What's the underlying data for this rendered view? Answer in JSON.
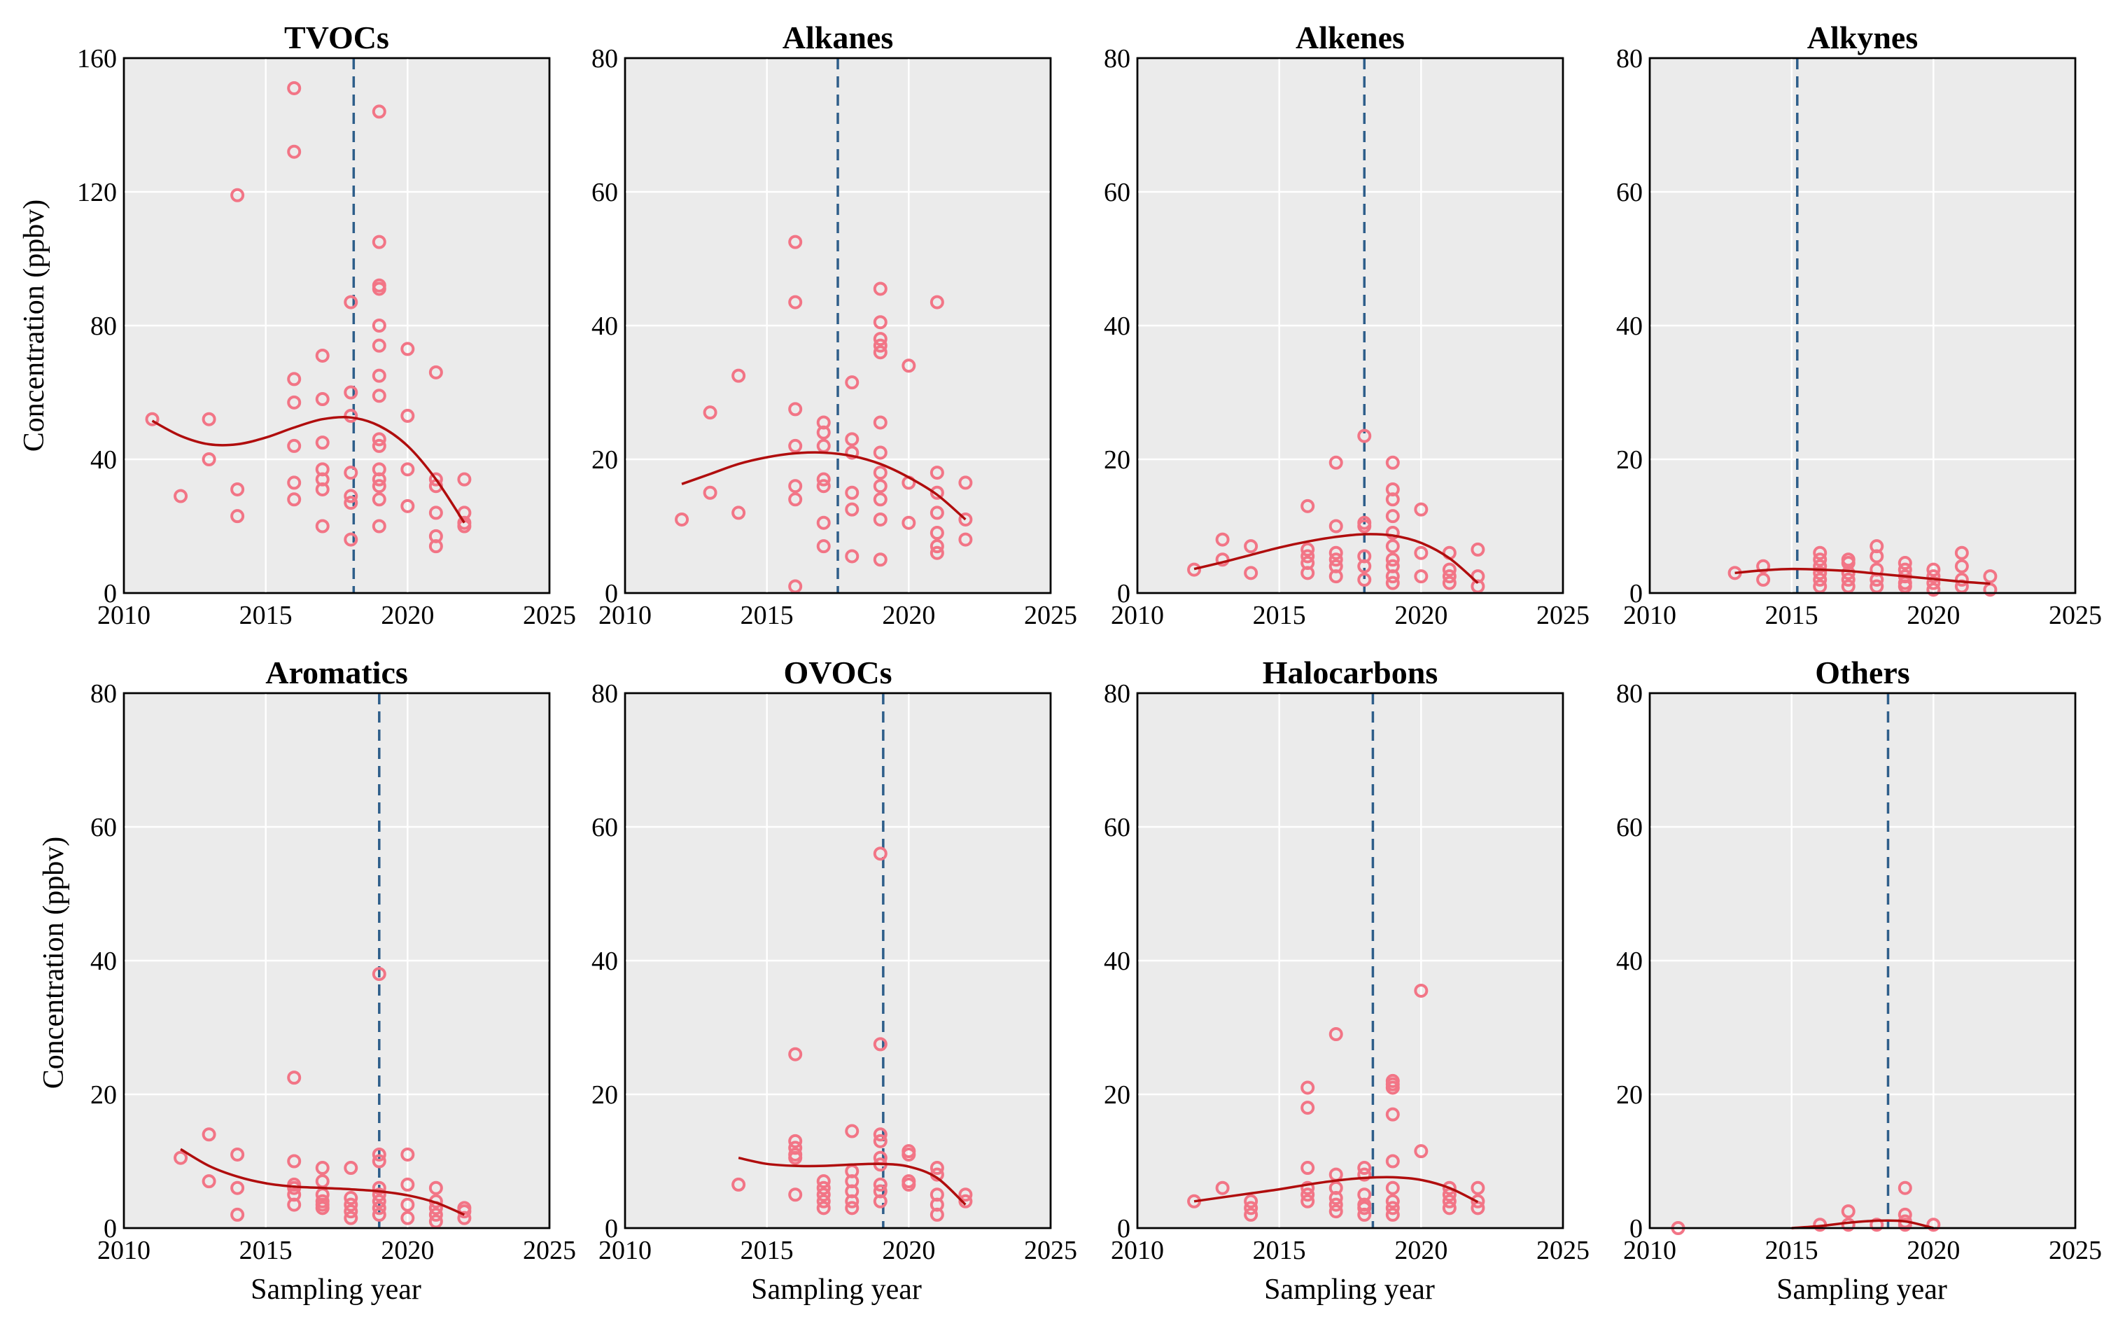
{
  "figure": {
    "ylabel": "Concentration (ppbv)",
    "xlabel": "Sampling year",
    "colors": {
      "points": "#f27586",
      "fit": "#b00d0d",
      "vline": "#2e5e8a",
      "panel_bg": "#ebebeb"
    }
  },
  "chart_data": [
    {
      "type": "scatter",
      "title": "TVOCs",
      "xlim": [
        2010,
        2025
      ],
      "ylim": [
        0,
        160
      ],
      "xticks": [
        "2010",
        "2015",
        "2020",
        "2025"
      ],
      "yticks": [
        "0",
        "40",
        "80",
        "120",
        "160"
      ],
      "grid": true,
      "vline_x": 2018.1,
      "x": [
        2011,
        2012,
        2013,
        2013,
        2014,
        2014,
        2014,
        2016,
        2016,
        2016,
        2016,
        2016,
        2016,
        2016,
        2017,
        2017,
        2017,
        2017,
        2017,
        2017,
        2017,
        2018,
        2018,
        2018,
        2018,
        2018,
        2018,
        2018,
        2019,
        2019,
        2019,
        2019,
        2019,
        2019,
        2019,
        2019,
        2019,
        2019,
        2019,
        2019,
        2019,
        2019,
        2019,
        2020,
        2020,
        2020,
        2020,
        2021,
        2021,
        2021,
        2021,
        2021,
        2021,
        2022,
        2022,
        2022,
        2022
      ],
      "y": [
        52,
        29,
        52,
        40,
        119,
        31,
        23,
        151,
        132,
        64,
        57,
        44,
        33,
        28,
        71,
        58,
        45,
        37,
        34,
        31,
        20,
        87,
        60,
        53,
        36,
        29,
        27,
        16,
        144,
        105,
        92,
        91,
        80,
        74,
        65,
        59,
        46,
        44,
        37,
        34,
        32,
        28,
        20,
        73,
        53,
        37,
        26,
        66,
        34,
        32,
        24,
        17,
        14,
        34,
        24,
        21,
        20
      ],
      "fit": {
        "x": [
          2011,
          2012,
          2013,
          2014,
          2015,
          2016,
          2017,
          2018,
          2019,
          2020,
          2021,
          2022
        ],
        "y": [
          51.5,
          47,
          44.5,
          44.5,
          46.5,
          49.5,
          52,
          52.5,
          50,
          44,
          34,
          21
        ]
      }
    },
    {
      "type": "scatter",
      "title": "Alkanes",
      "xlim": [
        2010,
        2025
      ],
      "ylim": [
        0,
        80
      ],
      "xticks": [
        "2010",
        "2015",
        "2020",
        "2025"
      ],
      "yticks": [
        "0",
        "20",
        "40",
        "60",
        "80"
      ],
      "grid": true,
      "vline_x": 2017.5,
      "x": [
        2012,
        2013,
        2013,
        2014,
        2014,
        2016,
        2016,
        2016,
        2016,
        2016,
        2016,
        2016,
        2017,
        2017,
        2017,
        2017,
        2017,
        2017,
        2017,
        2018,
        2018,
        2018,
        2018,
        2018,
        2018,
        2019,
        2019,
        2019,
        2019,
        2019,
        2019,
        2019,
        2019,
        2019,
        2019,
        2019,
        2019,
        2020,
        2020,
        2020,
        2021,
        2021,
        2021,
        2021,
        2021,
        2021,
        2021,
        2022,
        2022,
        2022
      ],
      "y": [
        11,
        27,
        15,
        32.5,
        12,
        52.5,
        43.5,
        27.5,
        22,
        16,
        14,
        1,
        25.5,
        24,
        22,
        17,
        16,
        10.5,
        7,
        31.5,
        23,
        21,
        15,
        12.5,
        5.5,
        45.5,
        40.5,
        38,
        37,
        36,
        25.5,
        21,
        18,
        16,
        14,
        11,
        5,
        34,
        16.5,
        10.5,
        43.5,
        18,
        15,
        12,
        9,
        7,
        6,
        16.5,
        11,
        8
      ],
      "fit": {
        "x": [
          2012,
          2013,
          2014,
          2015,
          2016,
          2017,
          2018,
          2019,
          2020,
          2021,
          2022
        ],
        "y": [
          16.3,
          17.8,
          19.3,
          20.3,
          20.9,
          21,
          20.5,
          19.3,
          17.3,
          14.7,
          11
        ]
      }
    },
    {
      "type": "scatter",
      "title": "Alkenes",
      "xlim": [
        2010,
        2025
      ],
      "ylim": [
        0,
        80
      ],
      "xticks": [
        "2010",
        "2015",
        "2020",
        "2025"
      ],
      "yticks": [
        "0",
        "20",
        "40",
        "60",
        "80"
      ],
      "grid": true,
      "vline_x": 2018,
      "x": [
        2012,
        2013,
        2013,
        2014,
        2014,
        2016,
        2016,
        2016,
        2016,
        2016,
        2017,
        2017,
        2017,
        2017,
        2017,
        2017,
        2018,
        2018,
        2018,
        2018,
        2018,
        2018,
        2019,
        2019,
        2019,
        2019,
        2019,
        2019,
        2019,
        2019,
        2019,
        2019,
        2020,
        2020,
        2020,
        2021,
        2021,
        2021,
        2021,
        2022,
        2022,
        2022
      ],
      "y": [
        3.5,
        8,
        5,
        7,
        3,
        13,
        6.5,
        5.5,
        4.5,
        3,
        19.5,
        10,
        6,
        5,
        4,
        2.5,
        23.5,
        10.5,
        10,
        5.5,
        4,
        2,
        19.5,
        15.5,
        14,
        11.5,
        9,
        7,
        5,
        4,
        2.5,
        1.5,
        12.5,
        6,
        2.5,
        6,
        3.5,
        2.5,
        1.5,
        6.5,
        2.5,
        1
      ],
      "fit": {
        "x": [
          2012,
          2013,
          2014,
          2015,
          2016,
          2017,
          2018,
          2019,
          2020,
          2021,
          2022
        ],
        "y": [
          3.6,
          4.6,
          5.7,
          6.8,
          7.7,
          8.4,
          8.8,
          8.6,
          7.5,
          5.2,
          1.5
        ]
      }
    },
    {
      "type": "scatter",
      "title": "Alkynes",
      "xlim": [
        2010,
        2025
      ],
      "ylim": [
        0,
        80
      ],
      "xticks": [
        "2010",
        "2015",
        "2020",
        "2025"
      ],
      "yticks": [
        "0",
        "20",
        "40",
        "60",
        "80"
      ],
      "grid": true,
      "vline_x": 2015.2,
      "x": [
        2013,
        2014,
        2014,
        2016,
        2016,
        2016,
        2016,
        2016,
        2016,
        2017,
        2017,
        2017,
        2017,
        2017,
        2018,
        2018,
        2018,
        2018,
        2018,
        2019,
        2019,
        2019,
        2019,
        2019,
        2020,
        2020,
        2020,
        2020,
        2021,
        2021,
        2021,
        2021,
        2022,
        2022
      ],
      "y": [
        3,
        4,
        2,
        6,
        5,
        4,
        3,
        2,
        1,
        5,
        4.5,
        3,
        2,
        1,
        7,
        5.5,
        3.5,
        2,
        1,
        4.5,
        3.5,
        2.5,
        1.5,
        1,
        3.5,
        2.5,
        1.5,
        0.5,
        6,
        4,
        2,
        1,
        2.5,
        0.5
      ],
      "fit": {
        "x": [
          2013,
          2014,
          2015,
          2016,
          2017,
          2018,
          2019,
          2020,
          2021,
          2022
        ],
        "y": [
          3,
          3.4,
          3.6,
          3.5,
          3.3,
          2.9,
          2.5,
          2.1,
          1.7,
          1.4
        ]
      }
    },
    {
      "type": "scatter",
      "title": "Aromatics",
      "xlim": [
        2010,
        2025
      ],
      "ylim": [
        0,
        80
      ],
      "xticks": [
        "2010",
        "2015",
        "2020",
        "2025"
      ],
      "yticks": [
        "0",
        "20",
        "40",
        "60",
        "80"
      ],
      "grid": true,
      "vline_x": 2019,
      "x": [
        2012,
        2013,
        2013,
        2014,
        2014,
        2014,
        2016,
        2016,
        2016,
        2016,
        2016,
        2016,
        2017,
        2017,
        2017,
        2017,
        2017,
        2017,
        2018,
        2018,
        2018,
        2018,
        2018,
        2019,
        2019,
        2019,
        2019,
        2019,
        2019,
        2019,
        2019,
        2020,
        2020,
        2020,
        2020,
        2021,
        2021,
        2021,
        2021,
        2021,
        2022,
        2022,
        2022
      ],
      "y": [
        10.5,
        14,
        7,
        11,
        6,
        2,
        22.5,
        10,
        6.5,
        6,
        5,
        3.5,
        9,
        7,
        5,
        4,
        3.5,
        3,
        9,
        4.5,
        3.5,
        2.5,
        1.5,
        38,
        11,
        10,
        6,
        5,
        4,
        3,
        2,
        11,
        6.5,
        3.5,
        1.5,
        6,
        4,
        3,
        2,
        1,
        3,
        2.5,
        1.5
      ],
      "fit": {
        "x": [
          2012,
          2013,
          2014,
          2015,
          2016,
          2017,
          2018,
          2019,
          2020,
          2021,
          2022
        ],
        "y": [
          11.8,
          9.3,
          7.7,
          6.7,
          6.2,
          6,
          5.8,
          5.5,
          4.9,
          3.8,
          2
        ]
      }
    },
    {
      "type": "scatter",
      "title": "OVOCs",
      "xlim": [
        2010,
        2025
      ],
      "ylim": [
        0,
        80
      ],
      "xticks": [
        "2010",
        "2015",
        "2020",
        "2025"
      ],
      "yticks": [
        "0",
        "20",
        "40",
        "60",
        "80"
      ],
      "grid": true,
      "vline_x": 2019.1,
      "x": [
        2014,
        2016,
        2016,
        2016,
        2016,
        2016,
        2016,
        2017,
        2017,
        2017,
        2017,
        2017,
        2018,
        2018,
        2018,
        2018,
        2018,
        2018,
        2019,
        2019,
        2019,
        2019,
        2019,
        2019,
        2019,
        2019,
        2019,
        2020,
        2020,
        2020,
        2020,
        2021,
        2021,
        2021,
        2021,
        2021,
        2022,
        2022
      ],
      "y": [
        6.5,
        26,
        13,
        12,
        11,
        10.5,
        5,
        7,
        6,
        5,
        4,
        3,
        14.5,
        8.5,
        7,
        5.5,
        4,
        3,
        56,
        27.5,
        14,
        13,
        10.5,
        9.5,
        6.5,
        5.5,
        4,
        11.5,
        11,
        7,
        6.5,
        9,
        8,
        5,
        3.5,
        2,
        5,
        4
      ],
      "fit": {
        "x": [
          2014,
          2015,
          2016,
          2017,
          2018,
          2019,
          2020,
          2021,
          2022
        ],
        "y": [
          10.5,
          9.6,
          9.3,
          9.3,
          9.5,
          9.6,
          9.2,
          7.5,
          3.5
        ]
      }
    },
    {
      "type": "scatter",
      "title": "Halocarbons",
      "xlim": [
        2010,
        2025
      ],
      "ylim": [
        0,
        80
      ],
      "xticks": [
        "2010",
        "2015",
        "2020",
        "2025"
      ],
      "yticks": [
        "0",
        "20",
        "40",
        "60",
        "80"
      ],
      "grid": true,
      "vline_x": 2018.3,
      "x": [
        2012,
        2013,
        2014,
        2014,
        2014,
        2016,
        2016,
        2016,
        2016,
        2016,
        2016,
        2017,
        2017,
        2017,
        2017,
        2017,
        2017,
        2018,
        2018,
        2018,
        2018,
        2018,
        2018,
        2019,
        2019,
        2019,
        2019,
        2019,
        2019,
        2019,
        2019,
        2019,
        2020,
        2020,
        2021,
        2021,
        2021,
        2021,
        2022,
        2022,
        2022
      ],
      "y": [
        4,
        6,
        4,
        3,
        2,
        21,
        18,
        9,
        6,
        5,
        4,
        29,
        8,
        6,
        4.5,
        3.5,
        2.5,
        9,
        8,
        5,
        3.5,
        3,
        2,
        22,
        21.5,
        21,
        17,
        10,
        6,
        4,
        3,
        2,
        35.5,
        11.5,
        6,
        5,
        4,
        3,
        6,
        4,
        3
      ],
      "fit": {
        "x": [
          2012,
          2013,
          2014,
          2015,
          2016,
          2017,
          2018,
          2019,
          2020,
          2021,
          2022
        ],
        "y": [
          4,
          4.6,
          5.2,
          5.8,
          6.5,
          7.1,
          7.5,
          7.6,
          7.2,
          6,
          3.9
        ]
      }
    },
    {
      "type": "scatter",
      "title": "Others",
      "xlim": [
        2010,
        2025
      ],
      "ylim": [
        0,
        80
      ],
      "xticks": [
        "2010",
        "2015",
        "2020",
        "2025"
      ],
      "yticks": [
        "0",
        "20",
        "40",
        "60",
        "80"
      ],
      "grid": true,
      "vline_x": 2018.4,
      "x": [
        2011,
        2016,
        2017,
        2017,
        2018,
        2019,
        2019,
        2019,
        2019,
        2020
      ],
      "y": [
        0,
        0.5,
        2.5,
        0.5,
        0.5,
        6,
        2,
        1,
        0.5,
        0.5
      ],
      "fit": {
        "x": [
          2015,
          2016,
          2017,
          2018,
          2019,
          2020
        ],
        "y": [
          0,
          0.3,
          0.8,
          1.1,
          1,
          0
        ]
      }
    }
  ]
}
